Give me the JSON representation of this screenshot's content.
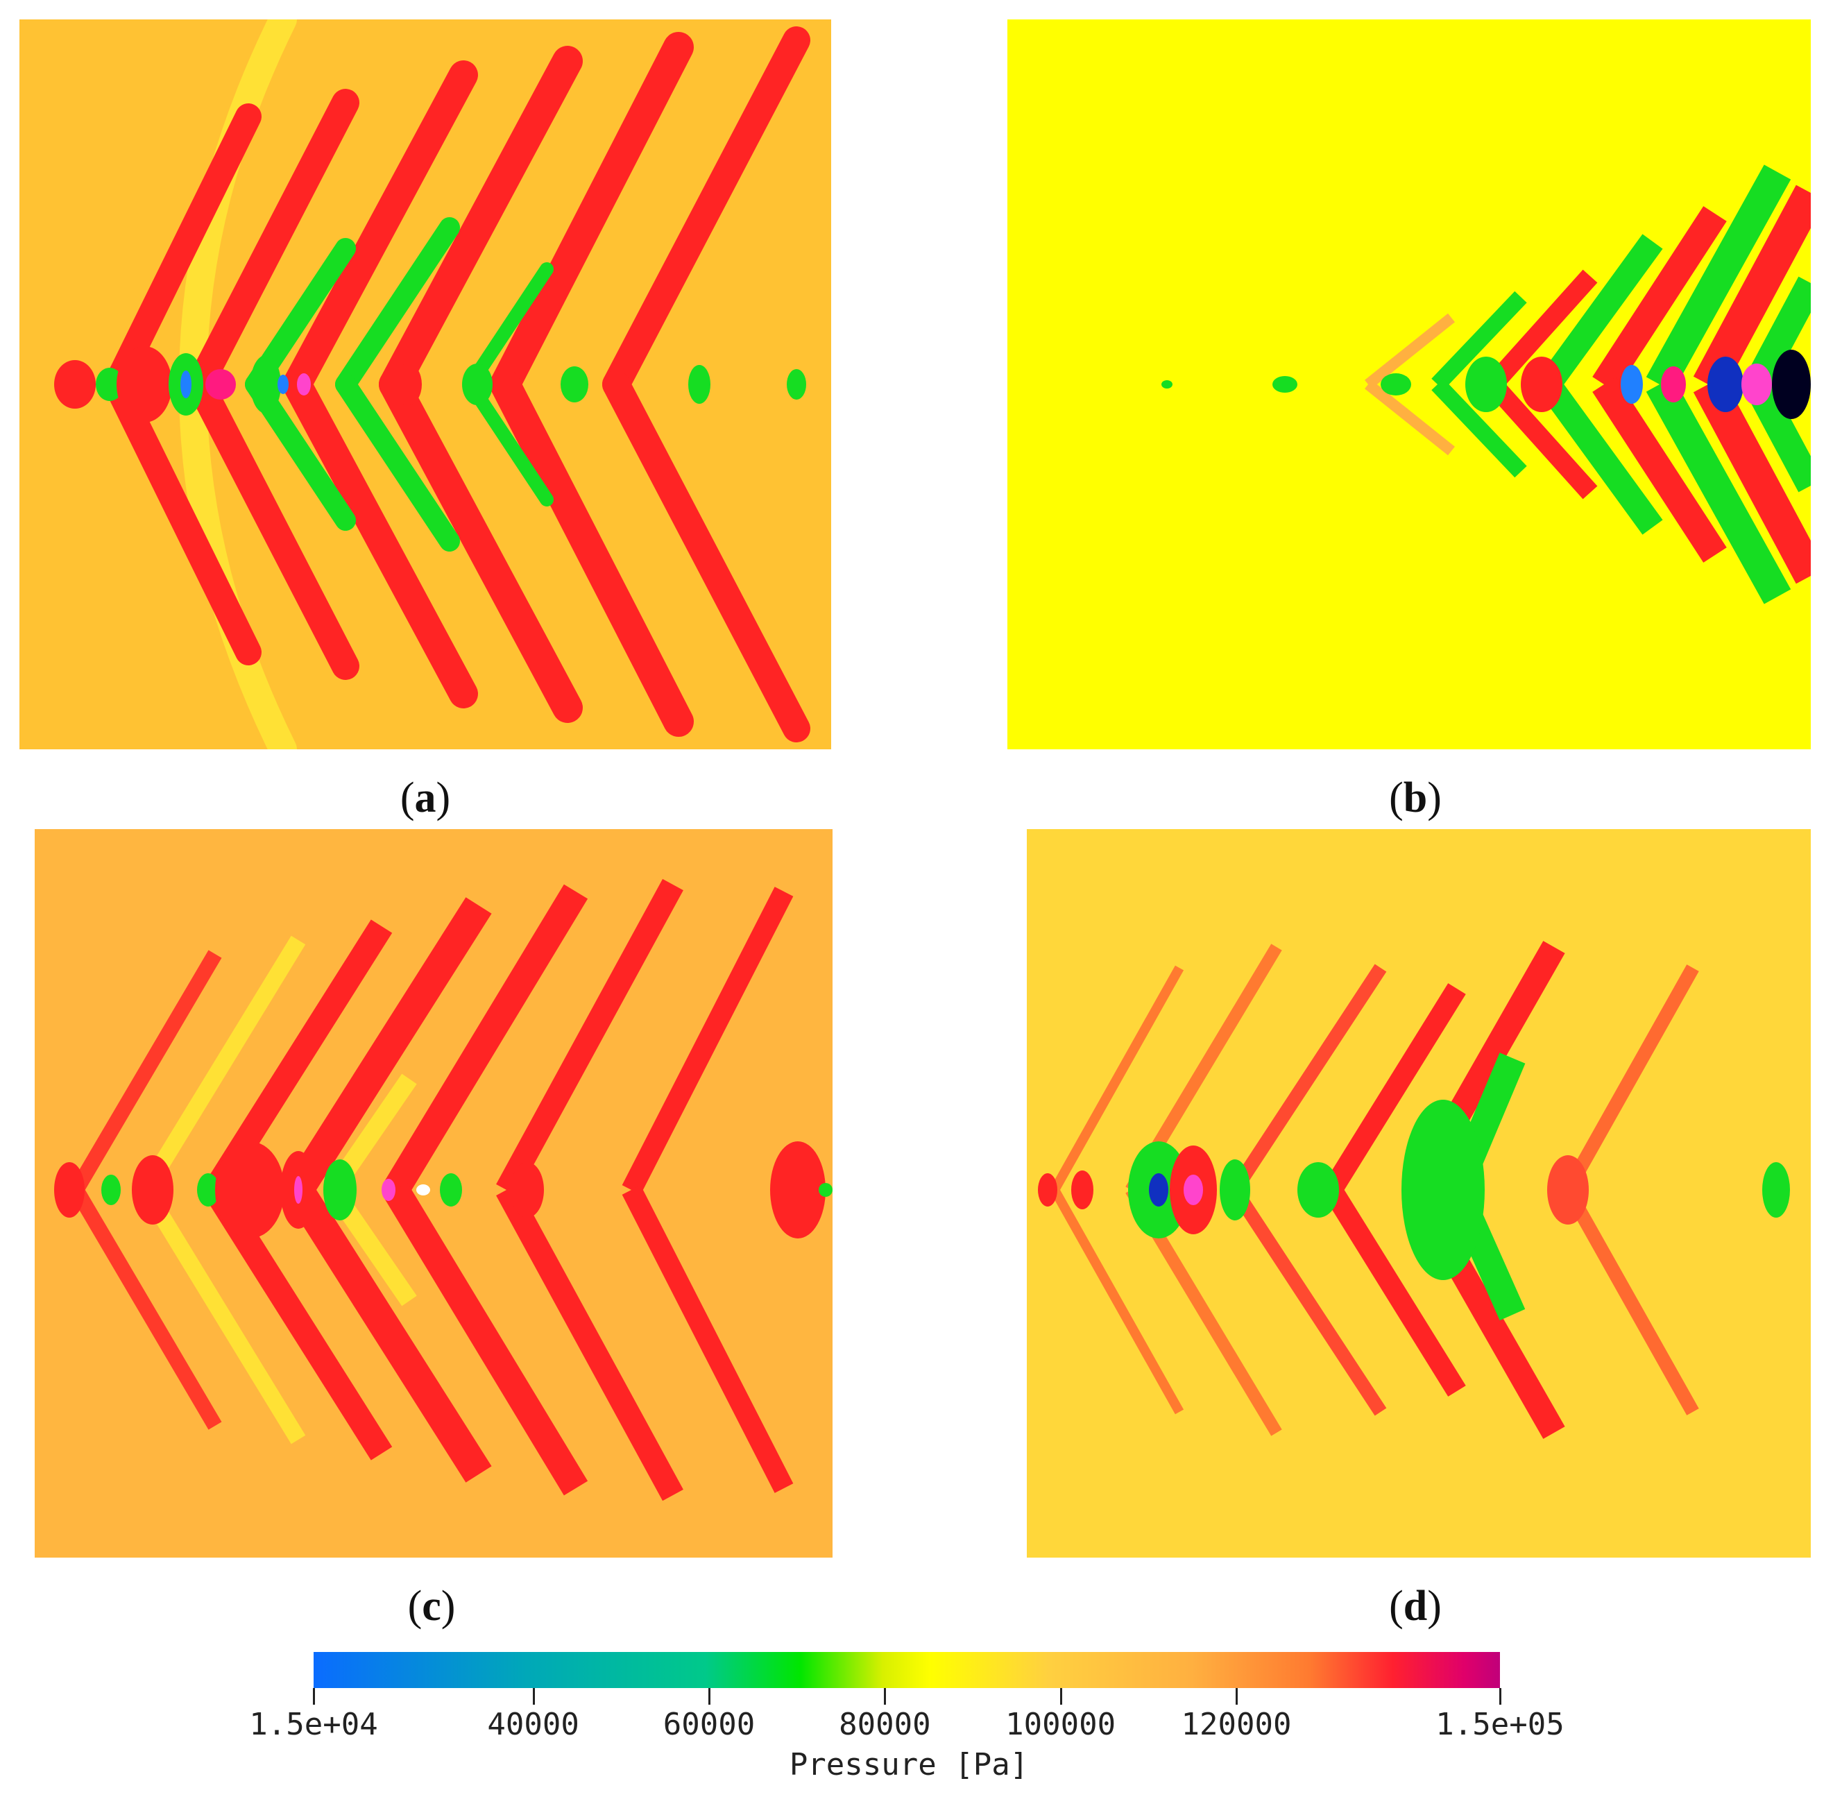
{
  "panels": [
    {
      "caption_pre": "(",
      "caption_letter": "a",
      "caption_post": ")"
    },
    {
      "caption_pre": "(",
      "caption_letter": "b",
      "caption_post": ")"
    },
    {
      "caption_pre": "(",
      "caption_letter": "c",
      "caption_post": ")"
    },
    {
      "caption_pre": "(",
      "caption_letter": "d",
      "caption_post": ")"
    }
  ],
  "colorbar": {
    "title": "Pressure [Pa]",
    "min": 15000,
    "max": 150000,
    "ticks": [
      {
        "value": 15000,
        "label": "1.5e+04"
      },
      {
        "value": 40000,
        "label": "40000"
      },
      {
        "value": 60000,
        "label": "60000"
      },
      {
        "value": 80000,
        "label": "80000"
      },
      {
        "value": 100000,
        "label": "100000"
      },
      {
        "value": 120000,
        "label": "120000"
      },
      {
        "value": 150000,
        "label": "1.5e+05"
      }
    ],
    "colors": {
      "low": "#0a6cff",
      "mid_low": "#00e600",
      "mid": "#ffff00",
      "mid_high": "#ffb040",
      "high": "#ff2030",
      "max": "#c0007a"
    }
  }
}
